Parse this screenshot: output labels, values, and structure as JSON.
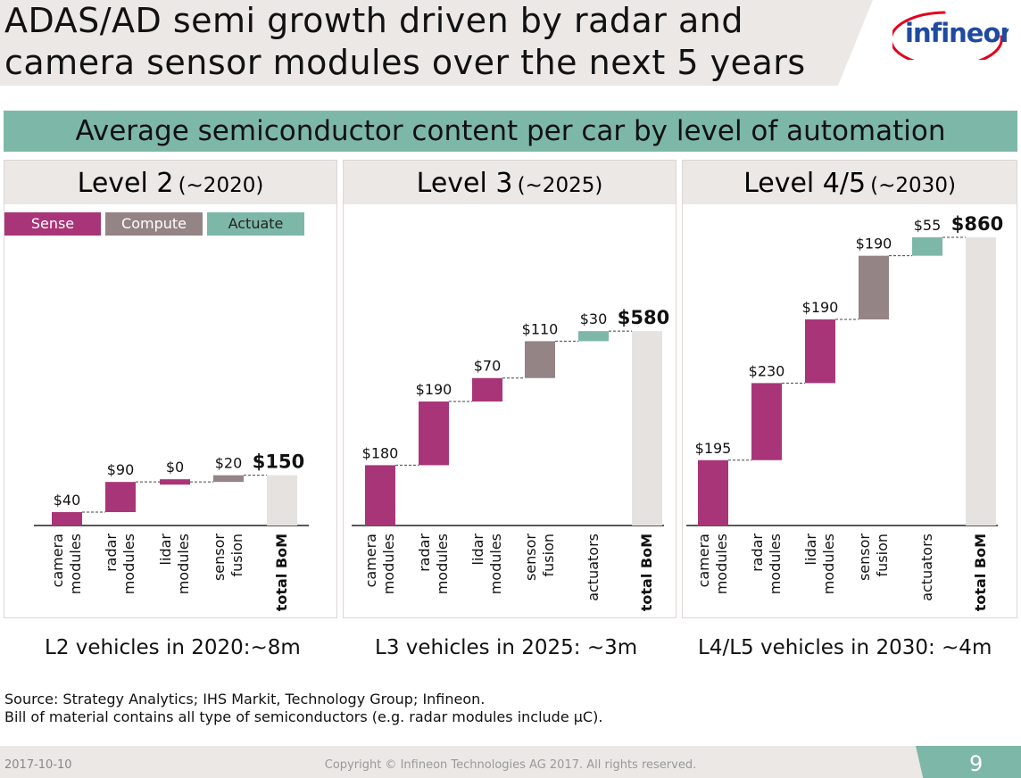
{
  "slide": {
    "title_line1": "ADAS/AD semi growth driven by radar and",
    "title_line2": "camera sensor modules over the next 5 years",
    "logo_text": "infineon",
    "banner": "Average semiconductor content per car by level of automation",
    "legend": {
      "sense": "Sense",
      "compute": "Compute",
      "actuate": "Actuate"
    },
    "colors": {
      "sense": "#a83578",
      "compute": "#958485",
      "actuate": "#7db7a8",
      "total": "#e6e2e0",
      "header_bg": "#ebe8e6"
    },
    "source_line1": "Source: Strategy Analytics; IHS Markit, Technology Group; Infineon.",
    "source_line2": "Bill of material contains all type of semiconductors (e.g. radar modules include µC).",
    "footer_date": "2017-10-10",
    "footer_copyright": "Copyright © Infineon Technologies AG 2017. All rights reserved.",
    "page_number": "9"
  },
  "panels": [
    {
      "level": "Level 2",
      "year": "(~2020)",
      "vehicles": "L2 vehicles in 2020:~8m"
    },
    {
      "level": "Level 3",
      "year": "(~2025)",
      "vehicles": "L3 vehicles in 2025: ~3m"
    },
    {
      "level": "Level 4/5",
      "year": "(~2030)",
      "vehicles": "L4/L5 vehicles in 2030: ~4m"
    }
  ],
  "chart_data": [
    {
      "type": "bar",
      "subtype": "waterfall",
      "title": "Level 2 (~2020)",
      "categories": [
        "camera modules",
        "radar modules",
        "lidar modules",
        "sensor fusion",
        "total BoM"
      ],
      "values": [
        40,
        90,
        0,
        20,
        150
      ],
      "labels": [
        "$40",
        "$90",
        "$0",
        "$20",
        "$150"
      ],
      "groups": [
        "sense",
        "sense",
        "sense",
        "compute",
        "total"
      ],
      "ylim": [
        0,
        860
      ]
    },
    {
      "type": "bar",
      "subtype": "waterfall",
      "title": "Level 3 (~2025)",
      "categories": [
        "camera modules",
        "radar modules",
        "lidar modules",
        "sensor fusion",
        "actuators",
        "total BoM"
      ],
      "values": [
        180,
        190,
        70,
        110,
        30,
        580
      ],
      "labels": [
        "$180",
        "$190",
        "$70",
        "$110",
        "$30",
        "$580"
      ],
      "groups": [
        "sense",
        "sense",
        "sense",
        "compute",
        "actuate",
        "total"
      ],
      "ylim": [
        0,
        860
      ]
    },
    {
      "type": "bar",
      "subtype": "waterfall",
      "title": "Level 4/5 (~2030)",
      "categories": [
        "camera modules",
        "radar modules",
        "lidar modules",
        "sensor fusion",
        "actuators",
        "total BoM"
      ],
      "values": [
        195,
        230,
        190,
        190,
        55,
        860
      ],
      "labels": [
        "$195",
        "$230",
        "$190",
        "$190",
        "$55",
        "$860"
      ],
      "groups": [
        "sense",
        "sense",
        "sense",
        "compute",
        "actuate",
        "total"
      ],
      "ylim": [
        0,
        860
      ]
    }
  ]
}
